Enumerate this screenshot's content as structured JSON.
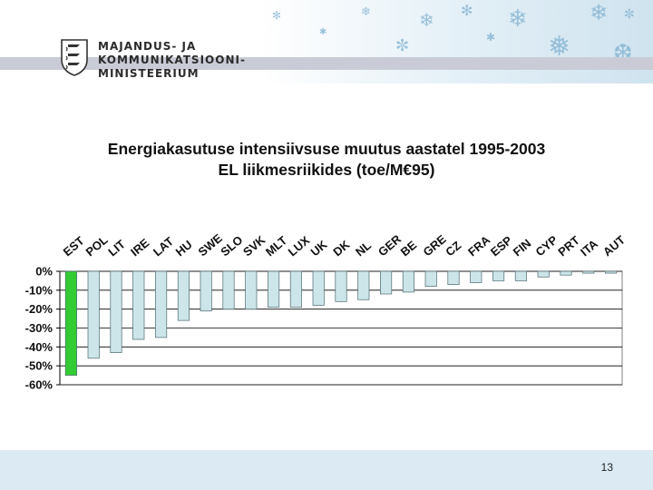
{
  "header": {
    "ministry_line1": "MAJANDUS- JA",
    "ministry_line2": "KOMMUNIKATSIOONI-",
    "ministry_line3": "MINISTEERIUM",
    "emblem_icon": "coat-of-arms-icon",
    "decor_icon": "snowflake-icon"
  },
  "slide": {
    "page_number": "13"
  },
  "colors": {
    "highlight_bar": "#33cc33",
    "bar": "#cce5e8",
    "bar_border": "#4d6a70",
    "gridline": "#000000"
  },
  "chart_data": {
    "type": "bar",
    "title": "Energiakasutuse intensiivsuse muutus aastatel 1995-2003",
    "subtitle": "EL liikmesriikides (toe/M€95)",
    "xlabel": "",
    "ylabel": "",
    "categories": [
      "EST",
      "POL",
      "LIT",
      "IRE",
      "LAT",
      "HU",
      "SWE",
      "SLO",
      "SVK",
      "MLT",
      "LUX",
      "UK",
      "DK",
      "NL",
      "GER",
      "BE",
      "GRE",
      "CZ",
      "FRA",
      "ESP",
      "FIN",
      "CYP",
      "PRT",
      "ITA",
      "AUT"
    ],
    "values": [
      -55,
      -46,
      -43,
      -36,
      -35,
      -26,
      -21,
      -20,
      -20,
      -19,
      -19,
      -18,
      -16,
      -15,
      -12,
      -11,
      -8,
      -7,
      -6,
      -5,
      -5,
      -3,
      -2,
      -1,
      -1
    ],
    "highlight": "EST",
    "ylim": [
      -60,
      0
    ],
    "yticks": [
      "0%",
      "-10%",
      "-20%",
      "-30%",
      "-40%",
      "-50%",
      "-60%"
    ],
    "grid": true,
    "legend": "none"
  }
}
